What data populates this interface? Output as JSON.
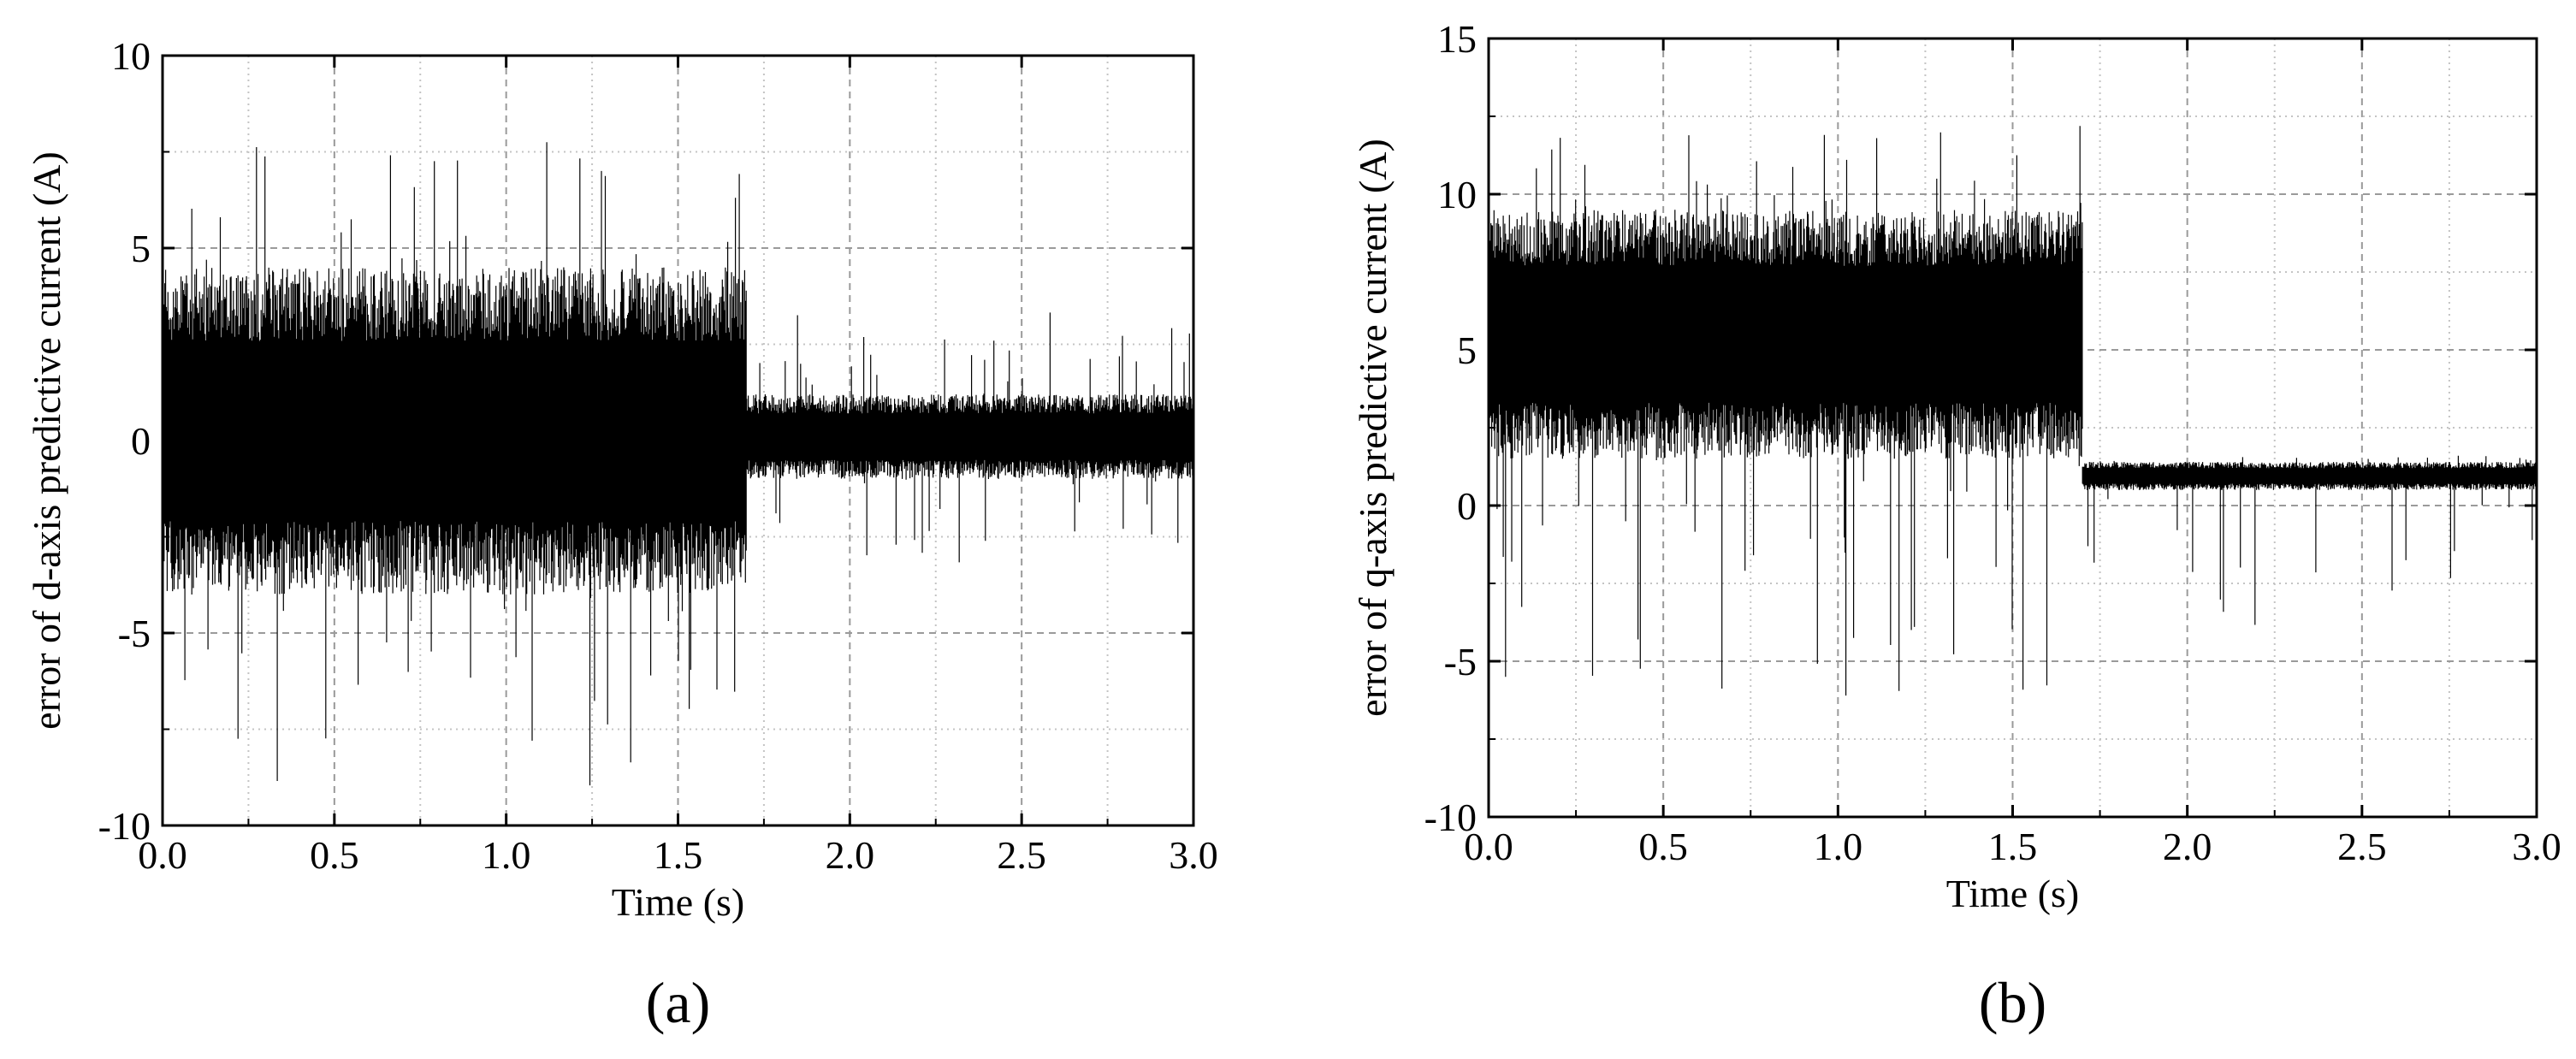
{
  "chart_data": [
    {
      "type": "line",
      "panel_label": "(a)",
      "xlabel": "Time (s)",
      "ylabel": "error of d-axis predictive current (A)",
      "xlim": [
        0.0,
        3.0
      ],
      "ylim": [
        -10,
        10
      ],
      "xticks": [
        "0.0",
        "0.5",
        "1.0",
        "1.5",
        "2.0",
        "2.5",
        "3.0"
      ],
      "yticks": [
        "-10",
        "-5",
        "0",
        "5",
        "10"
      ],
      "grid": true,
      "series": [
        {
          "segments": [
            {
              "t_start": 0.0,
              "t_end": 1.7,
              "dense_band": [
                -4,
                4.5
              ],
              "spike_range": [
                -9.2,
                7.8
              ]
            },
            {
              "t_start": 1.7,
              "t_end": 3.0,
              "dense_band": [
                -1,
                1.2
              ],
              "spike_range": [
                -3.2,
                3.5
              ]
            }
          ]
        }
      ]
    },
    {
      "type": "line",
      "panel_label": "(b)",
      "xlabel": "Time (s)",
      "ylabel": "error of q-axis predictive current (A)",
      "xlim": [
        0.0,
        3.0
      ],
      "ylim": [
        -10,
        15
      ],
      "xticks": [
        "0.0",
        "0.5",
        "1.0",
        "1.5",
        "2.0",
        "2.5",
        "3.0"
      ],
      "yticks": [
        "-10",
        "-5",
        "0",
        "5",
        "10",
        "15"
      ],
      "grid": true,
      "series": [
        {
          "segments": [
            {
              "t_start": 0.0,
              "t_end": 1.7,
              "dense_band": [
                1.5,
                9.5
              ],
              "spike_range": [
                -6.6,
                12.2
              ]
            },
            {
              "t_start": 1.7,
              "t_end": 3.0,
              "dense_band": [
                0.5,
                1.4
              ],
              "spike_range": [
                -4.0,
                1.6
              ]
            }
          ]
        }
      ]
    }
  ]
}
